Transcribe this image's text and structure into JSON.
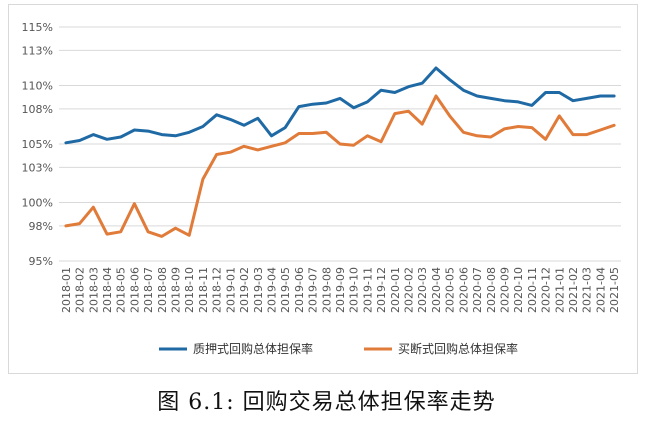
{
  "caption": "图 6.1: 回购交易总体担保率走势",
  "chart_data": {
    "type": "line",
    "title": "",
    "xlabel": "",
    "ylabel": "",
    "ylim": [
      95,
      115
    ],
    "y_ticks": [
      95,
      98,
      100,
      103,
      105,
      108,
      110,
      113,
      115
    ],
    "y_tick_labels": [
      "95%",
      "98%",
      "100%",
      "103%",
      "105%",
      "108%",
      "110%",
      "113%",
      "115%"
    ],
    "grid": "horizontal",
    "legend_position": "bottom",
    "categories": [
      "2018-01",
      "2018-02",
      "2018-03",
      "2018-04",
      "2018-05",
      "2018-06",
      "2018-07",
      "2018-08",
      "2018-09",
      "2018-10",
      "2018-11",
      "2018-12",
      "2019-01",
      "2019-02",
      "2019-03",
      "2019-04",
      "2019-05",
      "2019-06",
      "2019-07",
      "2019-08",
      "2019-09",
      "2019-10",
      "2019-11",
      "2019-12",
      "2020-01",
      "2020-02",
      "2020-03",
      "2020-04",
      "2020-05",
      "2020-06",
      "2020-07",
      "2020-08",
      "2020-09",
      "2020-10",
      "2020-11",
      "2020-12",
      "2021-01",
      "2021-02",
      "2021-03",
      "2021-04",
      "2021-05"
    ],
    "series": [
      {
        "name": "质押式回购总体担保率",
        "color": "#1f6aa5",
        "values": [
          105.1,
          105.3,
          105.8,
          105.4,
          105.6,
          106.2,
          106.1,
          105.8,
          105.7,
          106.0,
          106.5,
          107.5,
          107.1,
          106.6,
          107.2,
          105.7,
          106.4,
          108.2,
          108.4,
          108.5,
          108.9,
          108.1,
          108.6,
          109.6,
          109.4,
          109.9,
          110.2,
          111.5,
          110.5,
          109.6,
          109.1,
          108.9,
          108.7,
          108.6,
          108.3,
          109.4,
          109.4,
          108.7,
          108.9,
          109.1,
          109.1
        ]
      },
      {
        "name": "买断式回购总体担保率",
        "color": "#e07b39",
        "values": [
          98.0,
          98.2,
          99.6,
          97.3,
          97.5,
          99.9,
          97.5,
          97.1,
          97.8,
          97.2,
          102.0,
          104.1,
          104.3,
          104.8,
          104.5,
          104.8,
          105.1,
          105.9,
          105.9,
          106.0,
          105.0,
          104.9,
          105.7,
          105.2,
          107.6,
          107.8,
          106.7,
          109.1,
          107.4,
          106.0,
          105.7,
          105.6,
          106.3,
          106.5,
          106.4,
          105.4,
          107.4,
          105.8,
          105.8,
          106.2,
          106.6
        ]
      }
    ]
  }
}
